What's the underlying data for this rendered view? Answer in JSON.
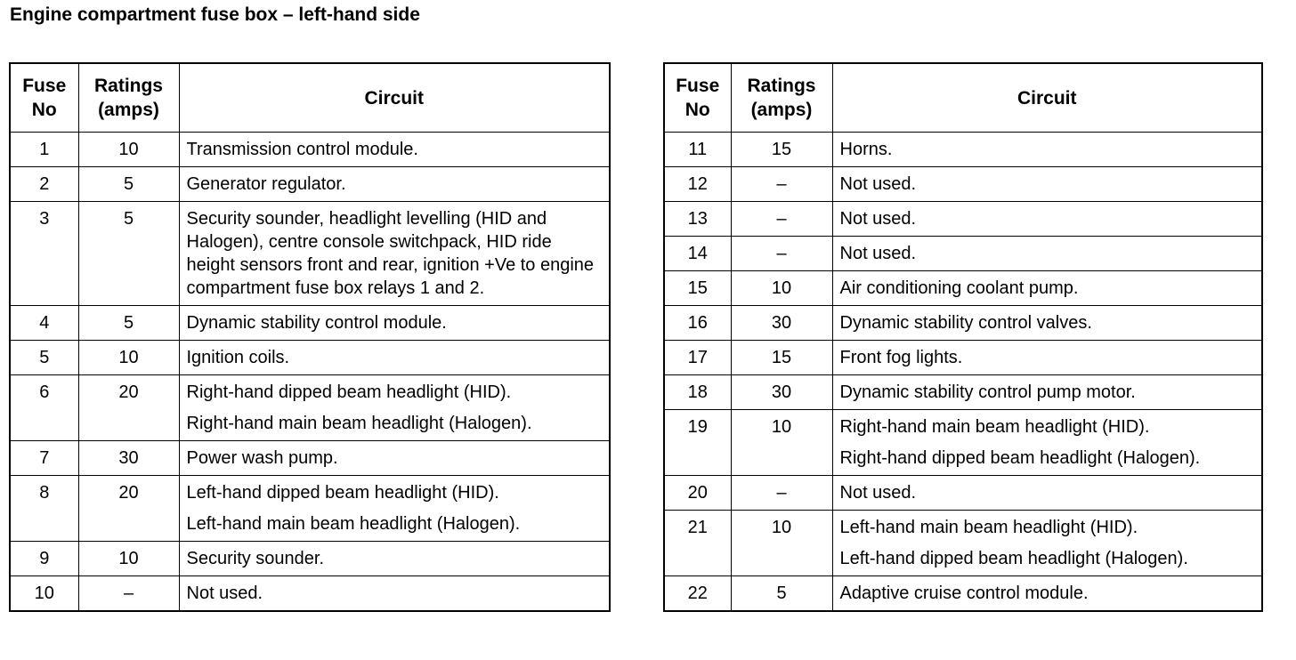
{
  "title": "Engine compartment fuse box – left-hand side",
  "headers": {
    "fuse": "Fuse No",
    "rating": "Ratings (amps)",
    "circuit": "Circuit"
  },
  "left_table": [
    {
      "fuse": "1",
      "rating": "10",
      "circuit": [
        "Transmission control module."
      ]
    },
    {
      "fuse": "2",
      "rating": "5",
      "circuit": [
        "Generator regulator."
      ]
    },
    {
      "fuse": "3",
      "rating": "5",
      "circuit": [
        "Security sounder, headlight levelling (HID and Halogen), centre console switchpack, HID ride height sensors front and rear, ignition +Ve to engine compartment fuse box relays 1 and 2."
      ]
    },
    {
      "fuse": "4",
      "rating": "5",
      "circuit": [
        "Dynamic stability control module."
      ]
    },
    {
      "fuse": "5",
      "rating": "10",
      "circuit": [
        "Ignition coils."
      ]
    },
    {
      "fuse": "6",
      "rating": "20",
      "circuit": [
        "Right-hand dipped beam headlight (HID).",
        "Right-hand main beam headlight (Halogen)."
      ]
    },
    {
      "fuse": "7",
      "rating": "30",
      "circuit": [
        "Power wash pump."
      ]
    },
    {
      "fuse": "8",
      "rating": "20",
      "circuit": [
        "Left-hand dipped beam headlight (HID).",
        "Left-hand main beam headlight (Halogen)."
      ]
    },
    {
      "fuse": "9",
      "rating": "10",
      "circuit": [
        "Security sounder."
      ]
    },
    {
      "fuse": "10",
      "rating": "–",
      "circuit": [
        "Not used."
      ]
    }
  ],
  "right_table": [
    {
      "fuse": "11",
      "rating": "15",
      "circuit": [
        "Horns."
      ]
    },
    {
      "fuse": "12",
      "rating": "–",
      "circuit": [
        "Not used."
      ]
    },
    {
      "fuse": "13",
      "rating": "–",
      "circuit": [
        "Not used."
      ]
    },
    {
      "fuse": "14",
      "rating": "–",
      "circuit": [
        "Not used."
      ]
    },
    {
      "fuse": "15",
      "rating": "10",
      "circuit": [
        "Air conditioning coolant pump."
      ]
    },
    {
      "fuse": "16",
      "rating": "30",
      "circuit": [
        "Dynamic stability control valves."
      ]
    },
    {
      "fuse": "17",
      "rating": "15",
      "circuit": [
        "Front fog lights."
      ]
    },
    {
      "fuse": "18",
      "rating": "30",
      "circuit": [
        "Dynamic stability control pump motor."
      ]
    },
    {
      "fuse": "19",
      "rating": "10",
      "circuit": [
        "Right-hand main beam headlight (HID).",
        "Right-hand dipped beam headlight (Halogen)."
      ]
    },
    {
      "fuse": "20",
      "rating": "–",
      "circuit": [
        "Not used."
      ]
    },
    {
      "fuse": "21",
      "rating": "10",
      "circuit": [
        "Left-hand main beam headlight (HID).",
        "Left-hand dipped beam headlight (Halogen)."
      ]
    },
    {
      "fuse": "22",
      "rating": "5",
      "circuit": [
        "Adaptive cruise control module."
      ]
    }
  ]
}
